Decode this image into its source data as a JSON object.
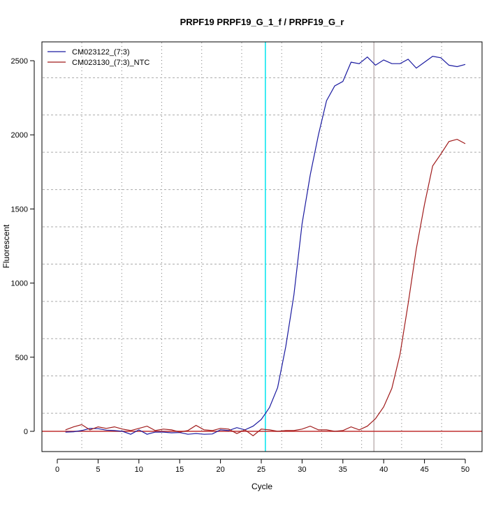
{
  "chart_data": {
    "type": "line",
    "title": "PRPF19  PRPF19_G_1_f / PRPF19_G_r",
    "xlabel": "Cycle",
    "ylabel": "Fluorescent",
    "xlim": [
      -2,
      52
    ],
    "ylim": [
      -130,
      2640
    ],
    "xticks": [
      0,
      5,
      10,
      15,
      20,
      25,
      30,
      35,
      40,
      45,
      50
    ],
    "yticks": [
      0,
      500,
      1000,
      1500,
      2000,
      2500
    ],
    "grid": true,
    "legend_position": "top-left",
    "x": [
      1,
      2,
      3,
      4,
      5,
      6,
      7,
      8,
      9,
      10,
      11,
      12,
      13,
      14,
      15,
      16,
      17,
      18,
      19,
      20,
      21,
      22,
      23,
      24,
      25,
      26,
      27,
      28,
      29,
      30,
      31,
      32,
      33,
      34,
      35,
      36,
      37,
      38,
      39,
      40,
      41,
      42,
      43,
      44,
      45,
      46,
      47,
      48,
      49,
      50
    ],
    "series": [
      {
        "name": "CM023122_(7:3)",
        "color": "#1a1aa0",
        "values": [
          -5,
          -3,
          5,
          20,
          18,
          8,
          5,
          0,
          -20,
          10,
          -20,
          -5,
          -5,
          -10,
          -8,
          -20,
          -15,
          -20,
          -18,
          10,
          5,
          25,
          10,
          35,
          80,
          160,
          295,
          570,
          920,
          1400,
          1730,
          2000,
          2230,
          2330,
          2360,
          2490,
          2480,
          2525,
          2470,
          2505,
          2480,
          2480,
          2510,
          2450,
          2490,
          2530,
          2520,
          2470,
          2460,
          2475
        ]
      },
      {
        "name": "CM023130_(7:3)_NTC",
        "color": "#a01a1a",
        "values": [
          10,
          30,
          45,
          10,
          30,
          20,
          30,
          15,
          5,
          20,
          35,
          5,
          15,
          10,
          -5,
          5,
          40,
          10,
          5,
          20,
          15,
          -15,
          10,
          -30,
          15,
          10,
          0,
          5,
          5,
          15,
          35,
          10,
          10,
          0,
          5,
          30,
          10,
          35,
          85,
          165,
          290,
          520,
          860,
          1230,
          1530,
          1790,
          1870,
          1955,
          1970,
          1940
        ]
      }
    ],
    "reference_lines": {
      "threshold_y": 0,
      "threshold_color": "#c03030",
      "cyan_x": 25.5,
      "cyan_color": "#00e5ee",
      "grey_x": 38.8,
      "grey_color": "#a09090"
    }
  }
}
